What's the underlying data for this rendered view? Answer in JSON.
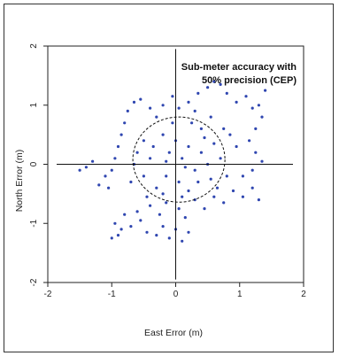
{
  "chart_data": {
    "type": "scatter",
    "title": "",
    "annotation": [
      "Sub-meter accuracy with",
      "50% precision (CEP)"
    ],
    "xlabel": "East Error (m)",
    "ylabel": "North Error (m)",
    "xlim": [
      -2,
      2
    ],
    "ylim": [
      -2,
      2
    ],
    "xticks": [
      -2,
      -1,
      0,
      1,
      2
    ],
    "yticks": [
      -2,
      -1,
      0,
      1,
      2
    ],
    "point_color": "#2f46b0",
    "cep_circle": {
      "center": [
        0.05,
        0.08
      ],
      "radius": 0.72
    },
    "crosshair": {
      "x": 0,
      "y": 0
    },
    "points": [
      [
        -1.0,
        -1.25
      ],
      [
        -0.9,
        -1.2
      ],
      [
        -0.85,
        -1.1
      ],
      [
        -0.7,
        -1.05
      ],
      [
        -0.55,
        -0.95
      ],
      [
        -0.45,
        -1.15
      ],
      [
        -0.3,
        -1.2
      ],
      [
        -0.2,
        -1.05
      ],
      [
        -0.1,
        -1.25
      ],
      [
        0.0,
        -1.1
      ],
      [
        0.1,
        -1.3
      ],
      [
        0.2,
        -1.15
      ],
      [
        -0.95,
        -1.0
      ],
      [
        -0.8,
        -0.85
      ],
      [
        -0.6,
        -0.8
      ],
      [
        -0.4,
        -0.7
      ],
      [
        -0.25,
        -0.85
      ],
      [
        -0.15,
        -0.65
      ],
      [
        0.05,
        -0.75
      ],
      [
        0.15,
        -0.9
      ],
      [
        0.3,
        -0.6
      ],
      [
        0.45,
        -0.75
      ],
      [
        0.6,
        -0.55
      ],
      [
        0.75,
        -0.65
      ],
      [
        0.9,
        -0.45
      ],
      [
        1.05,
        -0.55
      ],
      [
        1.2,
        -0.4
      ],
      [
        1.3,
        -0.6
      ],
      [
        -1.1,
        -0.2
      ],
      [
        -1.0,
        -0.1
      ],
      [
        -0.95,
        0.1
      ],
      [
        -0.9,
        0.3
      ],
      [
        -0.85,
        0.5
      ],
      [
        -0.8,
        0.7
      ],
      [
        -0.75,
        0.9
      ],
      [
        -0.65,
        1.05
      ],
      [
        -0.55,
        1.1
      ],
      [
        -0.4,
        0.95
      ],
      [
        -0.3,
        0.8
      ],
      [
        -0.2,
        1.0
      ],
      [
        -0.05,
        1.15
      ],
      [
        0.05,
        0.95
      ],
      [
        0.2,
        1.05
      ],
      [
        0.35,
        1.2
      ],
      [
        0.5,
        1.3
      ],
      [
        0.6,
        1.4
      ],
      [
        0.7,
        1.35
      ],
      [
        0.8,
        1.2
      ],
      [
        0.95,
        1.05
      ],
      [
        1.1,
        1.15
      ],
      [
        1.2,
        0.95
      ],
      [
        1.3,
        1.0
      ],
      [
        1.4,
        1.25
      ],
      [
        1.35,
        0.8
      ],
      [
        1.25,
        0.6
      ],
      [
        1.15,
        0.4
      ],
      [
        1.25,
        0.2
      ],
      [
        1.35,
        0.05
      ],
      [
        1.2,
        -0.1
      ],
      [
        1.05,
        -0.2
      ],
      [
        -1.4,
        -0.05
      ],
      [
        -1.5,
        -0.1
      ],
      [
        -1.3,
        0.05
      ],
      [
        -1.2,
        -0.35
      ],
      [
        -1.05,
        -0.4
      ],
      [
        -0.7,
        -0.3
      ],
      [
        -0.6,
        0.2
      ],
      [
        -0.5,
        0.4
      ],
      [
        -0.35,
        0.3
      ],
      [
        -0.2,
        0.5
      ],
      [
        -0.1,
        0.2
      ],
      [
        0.0,
        0.4
      ],
      [
        0.1,
        0.1
      ],
      [
        0.2,
        0.3
      ],
      [
        0.3,
        -0.1
      ],
      [
        0.4,
        0.2
      ],
      [
        0.5,
        0.0
      ],
      [
        0.6,
        0.35
      ],
      [
        0.7,
        0.1
      ],
      [
        0.8,
        -0.2
      ],
      [
        0.85,
        0.5
      ],
      [
        0.95,
        0.3
      ],
      [
        0.4,
        0.6
      ],
      [
        0.25,
        0.7
      ],
      [
        -0.15,
        -0.2
      ],
      [
        -0.3,
        -0.4
      ],
      [
        0.05,
        -0.3
      ],
      [
        0.2,
        -0.45
      ],
      [
        0.35,
        -0.3
      ],
      [
        0.55,
        -0.25
      ],
      [
        0.65,
        -0.4
      ],
      [
        -0.5,
        -0.2
      ],
      [
        -0.45,
        -0.55
      ],
      [
        -0.2,
        -0.5
      ],
      [
        0.1,
        -0.55
      ],
      [
        -0.65,
        0.0
      ],
      [
        -0.4,
        0.1
      ],
      [
        -0.15,
        0.05
      ],
      [
        0.15,
        -0.05
      ],
      [
        0.45,
        0.45
      ],
      [
        0.75,
        0.6
      ],
      [
        0.55,
        0.8
      ],
      [
        0.3,
        0.9
      ],
      [
        -0.05,
        0.7
      ]
    ]
  }
}
